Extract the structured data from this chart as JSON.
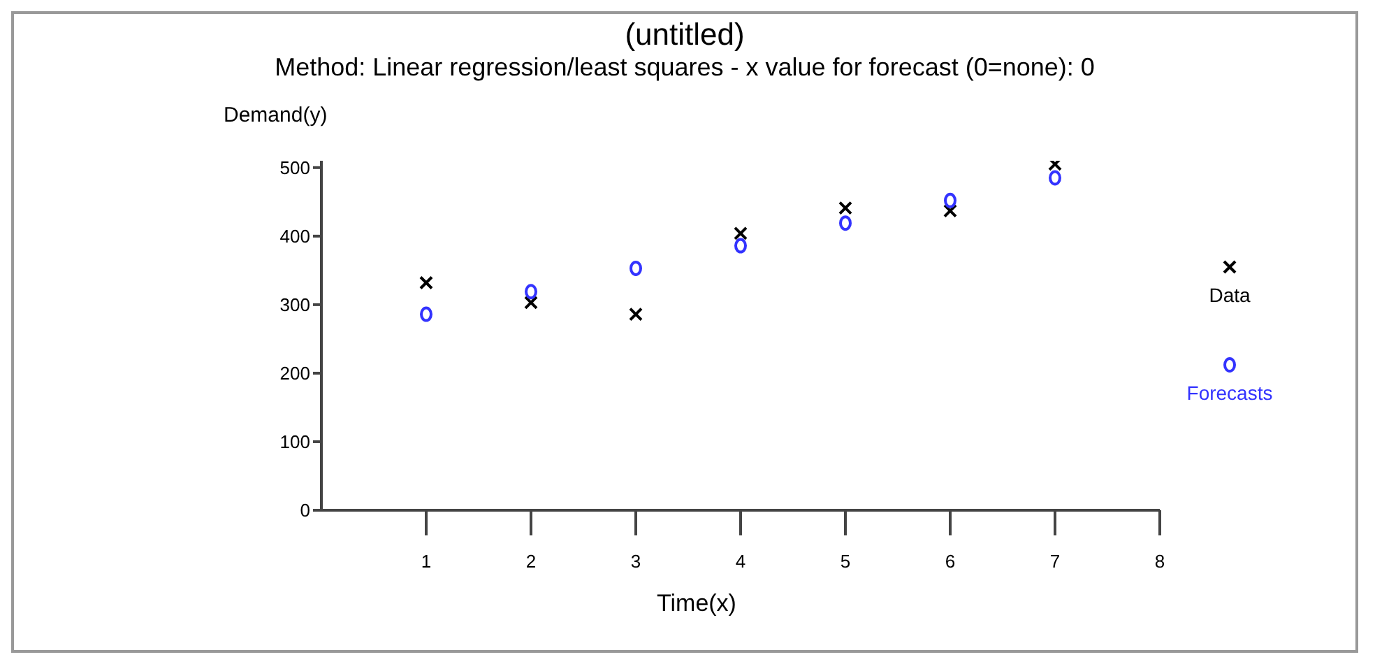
{
  "chart_data": {
    "type": "scatter",
    "title": "(untitled)",
    "subtitle": "Method: Linear regression/least squares - x value for forecast (0=none):  0",
    "xlabel": "Time(x)",
    "ylabel": "Demand(y)",
    "x": [
      1,
      2,
      3,
      4,
      5,
      6,
      7
    ],
    "series": [
      {
        "name": "Data",
        "color": "#000000",
        "marker": "cross",
        "values": [
          332,
          303,
          286,
          404,
          441,
          437,
          505
        ]
      },
      {
        "name": "Forecasts",
        "color": "#3333ff",
        "marker": "circle",
        "values": [
          286,
          319,
          353,
          386,
          419,
          452,
          485
        ]
      }
    ],
    "xlim": [
      0,
      8
    ],
    "xticks": [
      1,
      2,
      3,
      4,
      5,
      6,
      7,
      8
    ],
    "ylim": [
      0,
      510
    ],
    "yticks": [
      0,
      100,
      200,
      300,
      400,
      500
    ],
    "grid": false,
    "legend": "right"
  }
}
